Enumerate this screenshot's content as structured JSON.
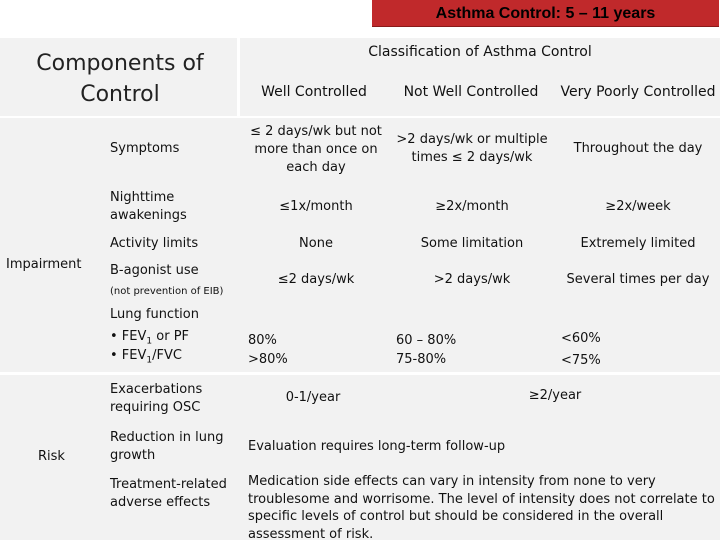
{
  "title": "Asthma Control: 5 – 11 years",
  "header": {
    "components": "Components of Control",
    "classification": "Classification of Asthma Control",
    "well": "Well Controlled",
    "not_well": "Not Well Controlled",
    "very_poorly": "Very Poorly Controlled"
  },
  "impairment": {
    "label": "Impairment",
    "symptoms": {
      "name": "Symptoms",
      "well": "≤ 2 days/wk but not more than once on each day",
      "not_well": ">2 days/wk or multiple times ≤ 2 days/wk",
      "very_poorly": "Throughout the day"
    },
    "nighttime": {
      "name": "Nighttime awakenings",
      "well": "≤1x/month",
      "not_well": "≥2x/month",
      "very_poorly": "≥2x/week"
    },
    "activity": {
      "name": "Activity limits",
      "well": "None",
      "not_well": "Some limitation",
      "very_poorly": "Extremely limited"
    },
    "agonist": {
      "name": "B-agonist use",
      "note": "(not prevention of EIB)",
      "well": "≤2 days/wk",
      "not_well": ">2 days/wk",
      "very_poorly": "Several times per day"
    },
    "lung": {
      "name": "Lung function",
      "fev1_prefix": "• FEV",
      "fev1_sub": "1",
      "fev1_suffix": " or PF",
      "ratio_prefix": "• FEV",
      "ratio_sub": "1",
      "ratio_suffix": "/FVC",
      "well_1": "80%",
      "well_2": ">80%",
      "not_well_1": "60 – 80%",
      "not_well_2": "75-80%",
      "very_poorly_1": "<60%",
      "very_poorly_2": "<75%"
    }
  },
  "risk": {
    "label": "Risk",
    "exacerbations": {
      "name": "Exacerbations requiring OSC",
      "well": "0-1/year",
      "other": "≥2/year"
    },
    "reduction": {
      "name": "Reduction in lung growth",
      "text": "Evaluation requires long-term follow-up"
    },
    "treatment": {
      "name": "Treatment-related adverse effects",
      "text": "Medication side effects can vary in intensity from none to very troublesome and worrisome. The level of intensity does not correlate to specific levels of control but should be considered in the overall assessment of risk."
    }
  }
}
